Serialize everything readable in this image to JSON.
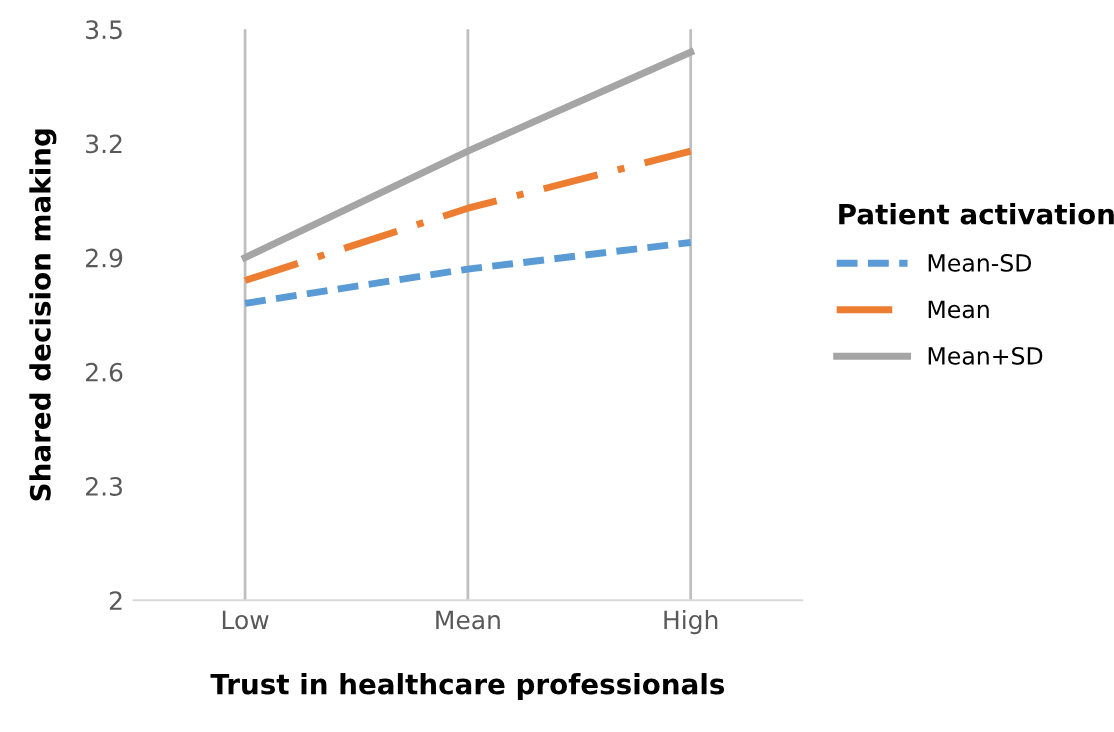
{
  "chart_data": {
    "type": "line",
    "xlabel": "Trust in healthcare professionals",
    "ylabel": "Shared decision making",
    "legend_title": "Patient activation",
    "categories": [
      "Low",
      "Mean",
      "High"
    ],
    "series": [
      {
        "name": "Mean-SD",
        "color": "#5b9bd5",
        "line_style": "dashed",
        "values": [
          2.78,
          2.87,
          2.94
        ]
      },
      {
        "name": "Mean",
        "color": "#ed7d31",
        "line_style": "dashdot",
        "values": [
          2.84,
          3.03,
          3.18
        ]
      },
      {
        "name": "Mean+SD",
        "color": "#a5a5a5",
        "line_style": "solid",
        "values": [
          2.9,
          3.18,
          3.44
        ]
      }
    ],
    "ylim": [
      2,
      3.5
    ],
    "yticks": [
      2,
      2.3,
      2.6,
      2.9,
      3.2,
      3.5
    ],
    "grid": "x",
    "legend": "right",
    "marker": "none"
  }
}
